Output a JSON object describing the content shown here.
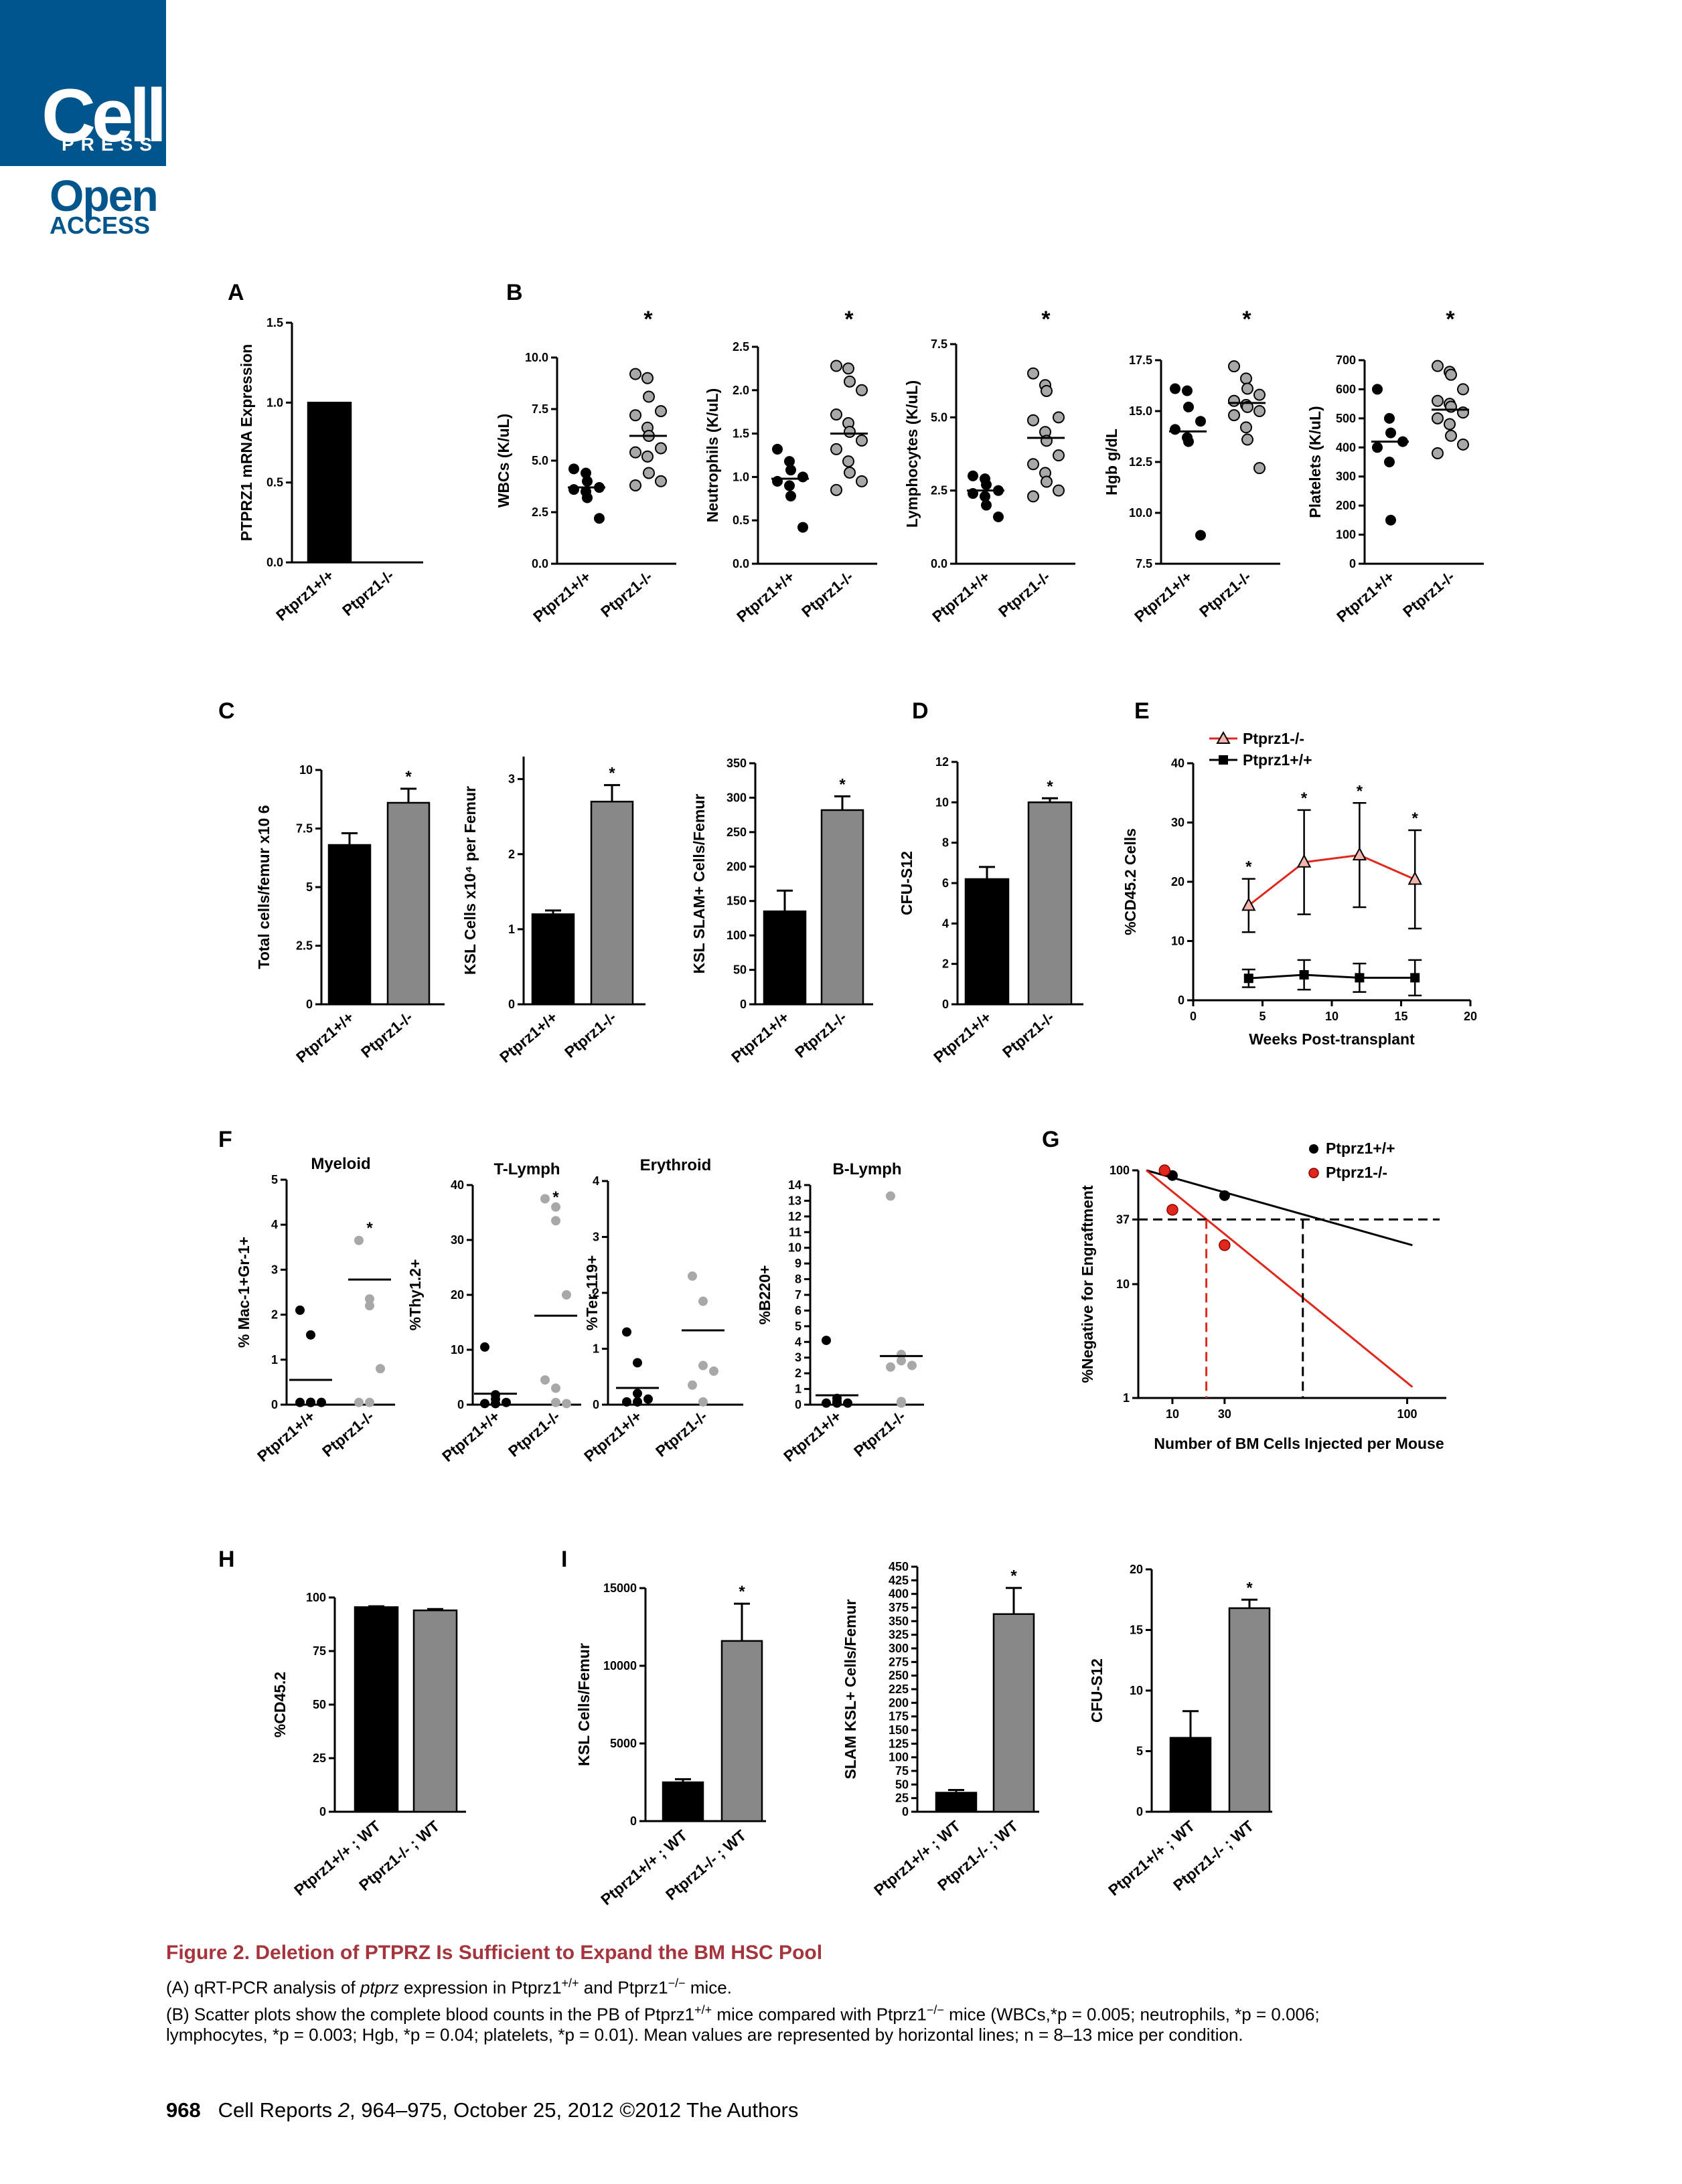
{
  "header": {
    "logo_cell": "Cell",
    "logo_press": "PRESS",
    "open": "Open",
    "access": "ACCESS"
  },
  "colors": {
    "brand": "#00558c",
    "caption_title": "#a5343c",
    "ko_gray": "#888888",
    "ko_dot": "#a8a8a8",
    "red": "#e0271c"
  },
  "panels": {
    "A": {
      "label": "A",
      "ylabel": "PTPRZ1 mRNA Expression",
      "ticks": [
        "0.0",
        "0.5",
        "1.0",
        "1.5"
      ],
      "categories": [
        "Ptprz1+/+",
        "Ptprz1-/-"
      ]
    },
    "B": {
      "label": "B",
      "categories": [
        "Ptprz1+/+",
        "Ptprz1-/-"
      ],
      "star": "*",
      "plots": [
        {
          "ylabel": "WBCs (K/uL)",
          "ticks": [
            "0.0",
            "2.5",
            "5.0",
            "7.5",
            "10.0"
          ]
        },
        {
          "ylabel": "Neutrophils (K/uL)",
          "ticks": [
            "0.0",
            "0.5",
            "1.0",
            "1.5",
            "2.0",
            "2.5"
          ]
        },
        {
          "ylabel": "Lymphocytes (K/uL)",
          "ticks": [
            "0.0",
            "2.5",
            "5.0",
            "7.5"
          ]
        },
        {
          "ylabel": "Hgb g/dL",
          "ticks": [
            "7.5",
            "10.0",
            "12.5",
            "15.0",
            "17.5"
          ]
        },
        {
          "ylabel": "Platelets (K/uL)",
          "ticks": [
            "0",
            "100",
            "200",
            "300",
            "400",
            "500",
            "600",
            "700"
          ]
        }
      ]
    },
    "C": {
      "label": "C",
      "categories": [
        "Ptprz1+/+",
        "Ptprz1-/-"
      ],
      "star": "*",
      "plots": [
        {
          "ylabel": "Total cells/femur x10 6",
          "ticks": [
            "0",
            "2.5",
            "5",
            "7.5",
            "10"
          ]
        },
        {
          "ylabel": "KSL Cells x10⁴ per Femur",
          "ticks": [
            "0",
            "1",
            "2",
            "3"
          ]
        },
        {
          "ylabel": "KSL SLAM+ Cells/Femur",
          "ticks": [
            "0",
            "50",
            "100",
            "150",
            "200",
            "250",
            "300",
            "350"
          ]
        }
      ]
    },
    "D": {
      "label": "D",
      "ylabel": "CFU-S12",
      "categories": [
        "Ptprz1+/+",
        "Ptprz1-/-"
      ],
      "star": "*",
      "ticks": [
        "0",
        "2",
        "4",
        "6",
        "8",
        "10",
        "12"
      ]
    },
    "E": {
      "label": "E",
      "ylabel": "%CD45.2 Cells",
      "xlabel": "Weeks Post-transplant",
      "legend": [
        "Ptprz1-/-",
        "Ptprz1+/+"
      ],
      "yticks": [
        "0",
        "10",
        "20",
        "30",
        "40"
      ],
      "xticks": [
        "0",
        "5",
        "10",
        "15",
        "20"
      ],
      "star": "*"
    },
    "F": {
      "label": "F",
      "categories": [
        "Ptprz1+/+",
        "Ptprz1-/-"
      ],
      "star": "*",
      "plots": [
        {
          "title": "Myeloid",
          "ylabel": "% Mac-1+Gr-1+",
          "ticks": [
            "0",
            "1",
            "2",
            "3",
            "4",
            "5"
          ]
        },
        {
          "title": "T-Lymph",
          "ylabel": "%Thy1.2+",
          "ticks": [
            "0",
            "10",
            "20",
            "30",
            "40"
          ]
        },
        {
          "title": "Erythroid",
          "ylabel": "%Ter-119+",
          "ticks": [
            "0",
            "1",
            "2",
            "3",
            "4"
          ]
        },
        {
          "title": "B-Lymph",
          "ylabel": "%B220+",
          "ticks": [
            "0",
            "1",
            "2",
            "3",
            "4",
            "5",
            "6",
            "7",
            "8",
            "9",
            "10",
            "11",
            "12",
            "13",
            "14"
          ]
        }
      ]
    },
    "G": {
      "label": "G",
      "ylabel": "%Negative for Engraftment",
      "xlabel": "Number of BM Cells Injected per Mouse",
      "legend": [
        "Ptprz1+/+",
        "Ptprz1-/-"
      ],
      "yticks": [
        "1",
        "10",
        "37",
        "100"
      ],
      "xticks": [
        "10",
        "30",
        "100"
      ]
    },
    "H": {
      "label": "H",
      "ylabel": "%CD45.2",
      "categories": [
        "Ptprz1+/+ ; WT",
        "Ptprz1-/- ; WT"
      ],
      "ticks": [
        "0",
        "25",
        "50",
        "75",
        "100"
      ]
    },
    "I": {
      "label": "I",
      "categories": [
        "Ptprz1+/+ ; WT",
        "Ptprz1-/- ; WT"
      ],
      "star": "*",
      "plots": [
        {
          "ylabel": "KSL Cells/Femur",
          "ticks": [
            "0",
            "5000",
            "10000",
            "15000"
          ]
        },
        {
          "ylabel": "SLAM KSL+ Cells/Femur",
          "ticks": [
            "0",
            "25",
            "50",
            "75",
            "100",
            "125",
            "150",
            "175",
            "200",
            "225",
            "250",
            "275",
            "300",
            "325",
            "350",
            "375",
            "400",
            "425",
            "450"
          ]
        },
        {
          "ylabel": "CFU-S12",
          "ticks": [
            "0",
            "5",
            "10",
            "15",
            "20"
          ]
        }
      ]
    }
  },
  "chart_data": [
    {
      "panel": "A",
      "type": "bar",
      "categories": [
        "Ptprz1+/+",
        "Ptprz1-/-"
      ],
      "values": [
        1.0,
        0.0
      ],
      "ylim": [
        0,
        1.5
      ]
    },
    {
      "panel": "B-WBC",
      "type": "scatter",
      "ylim": [
        0,
        10
      ],
      "means": [
        3.7,
        6.2
      ],
      "series": [
        {
          "values": [
            4.6,
            4.4,
            4.0,
            3.7,
            3.6,
            3.5,
            3.2,
            2.2
          ]
        },
        {
          "values": [
            9.2,
            9.0,
            8.1,
            7.4,
            7.2,
            6.6,
            6.2,
            5.6,
            5.4,
            5.2,
            4.4,
            4.0,
            3.8
          ]
        }
      ]
    },
    {
      "panel": "B-Neutrophils",
      "type": "scatter",
      "ylim": [
        0,
        2.5
      ],
      "means": [
        0.98,
        1.5
      ],
      "series": [
        {
          "values": [
            1.32,
            1.18,
            1.08,
            1.0,
            0.95,
            0.9,
            0.78,
            0.42
          ]
        },
        {
          "values": [
            2.28,
            2.25,
            2.1,
            2.0,
            1.72,
            1.62,
            1.52,
            1.42,
            1.32,
            1.18,
            1.05,
            0.95,
            0.85
          ]
        }
      ]
    },
    {
      "panel": "B-Lymphocytes",
      "type": "scatter",
      "ylim": [
        0,
        7.5
      ],
      "means": [
        2.5,
        4.3
      ],
      "series": [
        {
          "values": [
            3.0,
            2.9,
            2.7,
            2.5,
            2.4,
            2.3,
            2.0,
            1.6
          ]
        },
        {
          "values": [
            6.5,
            6.1,
            5.9,
            5.0,
            4.9,
            4.5,
            4.2,
            3.7,
            3.4,
            3.1,
            2.8,
            2.5,
            2.3
          ]
        }
      ]
    },
    {
      "panel": "B-Hgb",
      "type": "scatter",
      "ylim": [
        7.5,
        17.5
      ],
      "means": [
        14.0,
        15.4
      ],
      "series": [
        {
          "values": [
            16.1,
            16.0,
            15.2,
            14.5,
            14.1,
            13.7,
            13.5,
            8.9
          ]
        },
        {
          "values": [
            17.2,
            16.6,
            16.1,
            15.8,
            15.5,
            15.3,
            15.2,
            15.0,
            14.8,
            14.2,
            13.6,
            12.2
          ]
        }
      ]
    },
    {
      "panel": "B-Platelets",
      "type": "scatter",
      "ylim": [
        0,
        700
      ],
      "means": [
        420,
        530
      ],
      "series": [
        {
          "values": [
            600,
            500,
            450,
            420,
            400,
            350,
            150
          ]
        },
        {
          "values": [
            680,
            660,
            650,
            600,
            560,
            550,
            540,
            520,
            500,
            480,
            440,
            410,
            380
          ]
        }
      ]
    },
    {
      "panel": "C-Total",
      "type": "bar",
      "values": [
        6.8,
        8.6
      ],
      "errors": [
        0.5,
        0.6
      ],
      "ylim": [
        0,
        10
      ]
    },
    {
      "panel": "C-KSL",
      "type": "bar",
      "values": [
        1.2,
        2.7
      ],
      "errors": [
        0.05,
        0.22
      ],
      "ylim": [
        0,
        3.3
      ]
    },
    {
      "panel": "C-KSL-SLAM",
      "type": "bar",
      "values": [
        135,
        282
      ],
      "errors": [
        30,
        20
      ],
      "ylim": [
        0,
        350
      ]
    },
    {
      "panel": "D",
      "type": "bar",
      "values": [
        6.2,
        10.0
      ],
      "errors": [
        0.6,
        0.2
      ],
      "ylim": [
        0,
        12
      ]
    },
    {
      "panel": "E",
      "type": "line",
      "x": [
        4,
        8,
        12,
        16
      ],
      "xlim": [
        0,
        20
      ],
      "ylim": [
        0,
        40
      ],
      "series": [
        {
          "name": "Ptprz1-/-",
          "values": [
            16.0,
            23.3,
            24.5,
            20.4
          ],
          "errors": [
            4.5,
            8.8,
            8.8,
            8.3
          ]
        },
        {
          "name": "Ptprz1+/+",
          "values": [
            3.7,
            4.3,
            3.8,
            3.8
          ],
          "errors": [
            1.5,
            2.5,
            2.4,
            3.0
          ]
        }
      ]
    },
    {
      "panel": "F-Myeloid",
      "type": "scatter",
      "ylim": [
        0,
        5
      ],
      "means": [
        0.55,
        2.78
      ],
      "series": [
        {
          "values": [
            2.1,
            1.55,
            0.05,
            0.05,
            0.05,
            0.05,
            0.05
          ]
        },
        {
          "values": [
            3.65,
            2.35,
            2.2,
            0.8,
            0.05,
            0.05
          ]
        }
      ]
    },
    {
      "panel": "F-T-Lymph",
      "type": "scatter",
      "ylim": [
        0,
        40
      ],
      "means": [
        2.0,
        16.2
      ],
      "series": [
        {
          "values": [
            10.5,
            1.8,
            1.0,
            0.4,
            0.2,
            0.2,
            0.2
          ]
        },
        {
          "values": [
            37.5,
            36.0,
            33.5,
            20.0,
            4.5,
            3.0,
            0.4,
            0.2
          ]
        }
      ]
    },
    {
      "panel": "F-Erythroid",
      "type": "scatter",
      "ylim": [
        0,
        4
      ],
      "means": [
        0.3,
        1.33
      ],
      "series": [
        {
          "values": [
            1.3,
            0.75,
            0.2,
            0.1,
            0.05,
            0.05,
            0.05
          ]
        },
        {
          "values": [
            2.3,
            1.85,
            0.7,
            0.6,
            0.35,
            0.05
          ]
        }
      ]
    },
    {
      "panel": "F-B-Lymph",
      "type": "scatter",
      "ylim": [
        0,
        14
      ],
      "means": [
        0.6,
        3.1
      ],
      "series": [
        {
          "values": [
            4.1,
            0.4,
            0.2,
            0.1,
            0.1,
            0.1
          ]
        },
        {
          "values": [
            13.3,
            3.2,
            2.8,
            2.5,
            2.4,
            0.2,
            0.1
          ]
        }
      ]
    },
    {
      "panel": "G",
      "type": "scatter",
      "scale": "log-y",
      "xlim": [
        0,
        115
      ],
      "ylim": [
        1,
        100
      ],
      "series": [
        {
          "name": "Ptprz1+/+",
          "x": [
            7,
            10,
            30
          ],
          "values": [
            100,
            90,
            60
          ]
        },
        {
          "name": "Ptprz1-/-",
          "x": [
            7,
            10,
            30
          ],
          "values": [
            100,
            45,
            22
          ]
        }
      ]
    },
    {
      "panel": "H",
      "type": "bar",
      "values": [
        95.5,
        94.0
      ],
      "errors": [
        0.4,
        0.6
      ],
      "ylim": [
        0,
        100
      ]
    },
    {
      "panel": "I-KSL",
      "type": "bar",
      "values": [
        2500,
        11600
      ],
      "errors": [
        200,
        2400
      ],
      "ylim": [
        0,
        15000
      ]
    },
    {
      "panel": "I-SLAM-KSL",
      "type": "bar",
      "values": [
        35,
        363
      ],
      "errors": [
        5,
        48
      ],
      "ylim": [
        0,
        450
      ]
    },
    {
      "panel": "I-CFU",
      "type": "bar",
      "values": [
        6.1,
        16.8
      ],
      "errors": [
        2.2,
        0.7
      ],
      "ylim": [
        0,
        20
      ]
    }
  ],
  "caption": {
    "title": "Figure 2. Deletion of PTPRZ Is Sufficient to Expand the BM HSC Pool",
    "lineA_pre": "(A) qRT-PCR analysis of ",
    "lineA_gene": "ptprz",
    "lineA_mid": " expression in Ptprz1",
    "lineA_sup1": "+/+",
    "lineA_and": " and Ptprz1",
    "lineA_sup2": "−/−",
    "lineA_end": " mice.",
    "lineB1_pre": "(B) Scatter plots show the complete blood counts in the PB of Ptprz1",
    "lineB1_sup1": "+/+",
    "lineB1_mid": " mice compared with Ptprz1",
    "lineB1_sup2": "−/−",
    "lineB1_end": " mice (WBCs,*p = 0.005; neutrophils, *p = 0.006;",
    "lineB2": "lymphocytes, *p = 0.003; Hgb, *p = 0.04; platelets, *p = 0.01). Mean values are represented by horizontal lines; n = 8–13 mice per condition."
  },
  "footer": {
    "page": "968",
    "pre": "Cell Reports ",
    "vol": "2",
    "post": ", 964–975, October 25, 2012 ©2012 The Authors"
  }
}
